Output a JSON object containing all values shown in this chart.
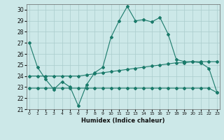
{
  "xlabel": "Humidex (Indice chaleur)",
  "background_color": "#cce8e8",
  "grid_color": "#aacccc",
  "line_color": "#1a7a6a",
  "x_values": [
    0,
    1,
    2,
    3,
    4,
    5,
    6,
    7,
    8,
    9,
    10,
    11,
    12,
    13,
    14,
    15,
    16,
    17,
    18,
    19,
    20,
    21,
    22,
    23
  ],
  "line_main": [
    27.0,
    24.8,
    23.7,
    22.8,
    23.5,
    23.0,
    21.3,
    23.2,
    24.3,
    24.8,
    27.5,
    29.0,
    30.3,
    29.0,
    29.1,
    28.9,
    29.3,
    27.8,
    25.5,
    25.3,
    25.3,
    25.2,
    24.7,
    22.5
  ],
  "line_mid": [
    24.0,
    24.0,
    24.0,
    24.0,
    24.0,
    24.0,
    24.0,
    24.1,
    24.2,
    24.3,
    24.4,
    24.5,
    24.6,
    24.7,
    24.8,
    24.9,
    25.0,
    25.1,
    25.2,
    25.2,
    25.3,
    25.3,
    25.3,
    25.3
  ],
  "line_low": [
    22.9,
    22.9,
    22.9,
    22.9,
    22.9,
    22.9,
    22.9,
    22.9,
    22.9,
    22.9,
    22.9,
    22.9,
    22.9,
    22.9,
    22.9,
    22.9,
    22.9,
    22.9,
    22.9,
    22.9,
    22.9,
    22.9,
    22.9,
    22.5
  ],
  "ylim": [
    21,
    30.5
  ],
  "xlim": [
    -0.3,
    23.3
  ],
  "yticks": [
    21,
    22,
    23,
    24,
    25,
    26,
    27,
    28,
    29,
    30
  ],
  "xticks": [
    0,
    1,
    2,
    3,
    4,
    5,
    6,
    7,
    8,
    9,
    10,
    11,
    12,
    13,
    14,
    15,
    16,
    17,
    18,
    19,
    20,
    21,
    22,
    23
  ]
}
